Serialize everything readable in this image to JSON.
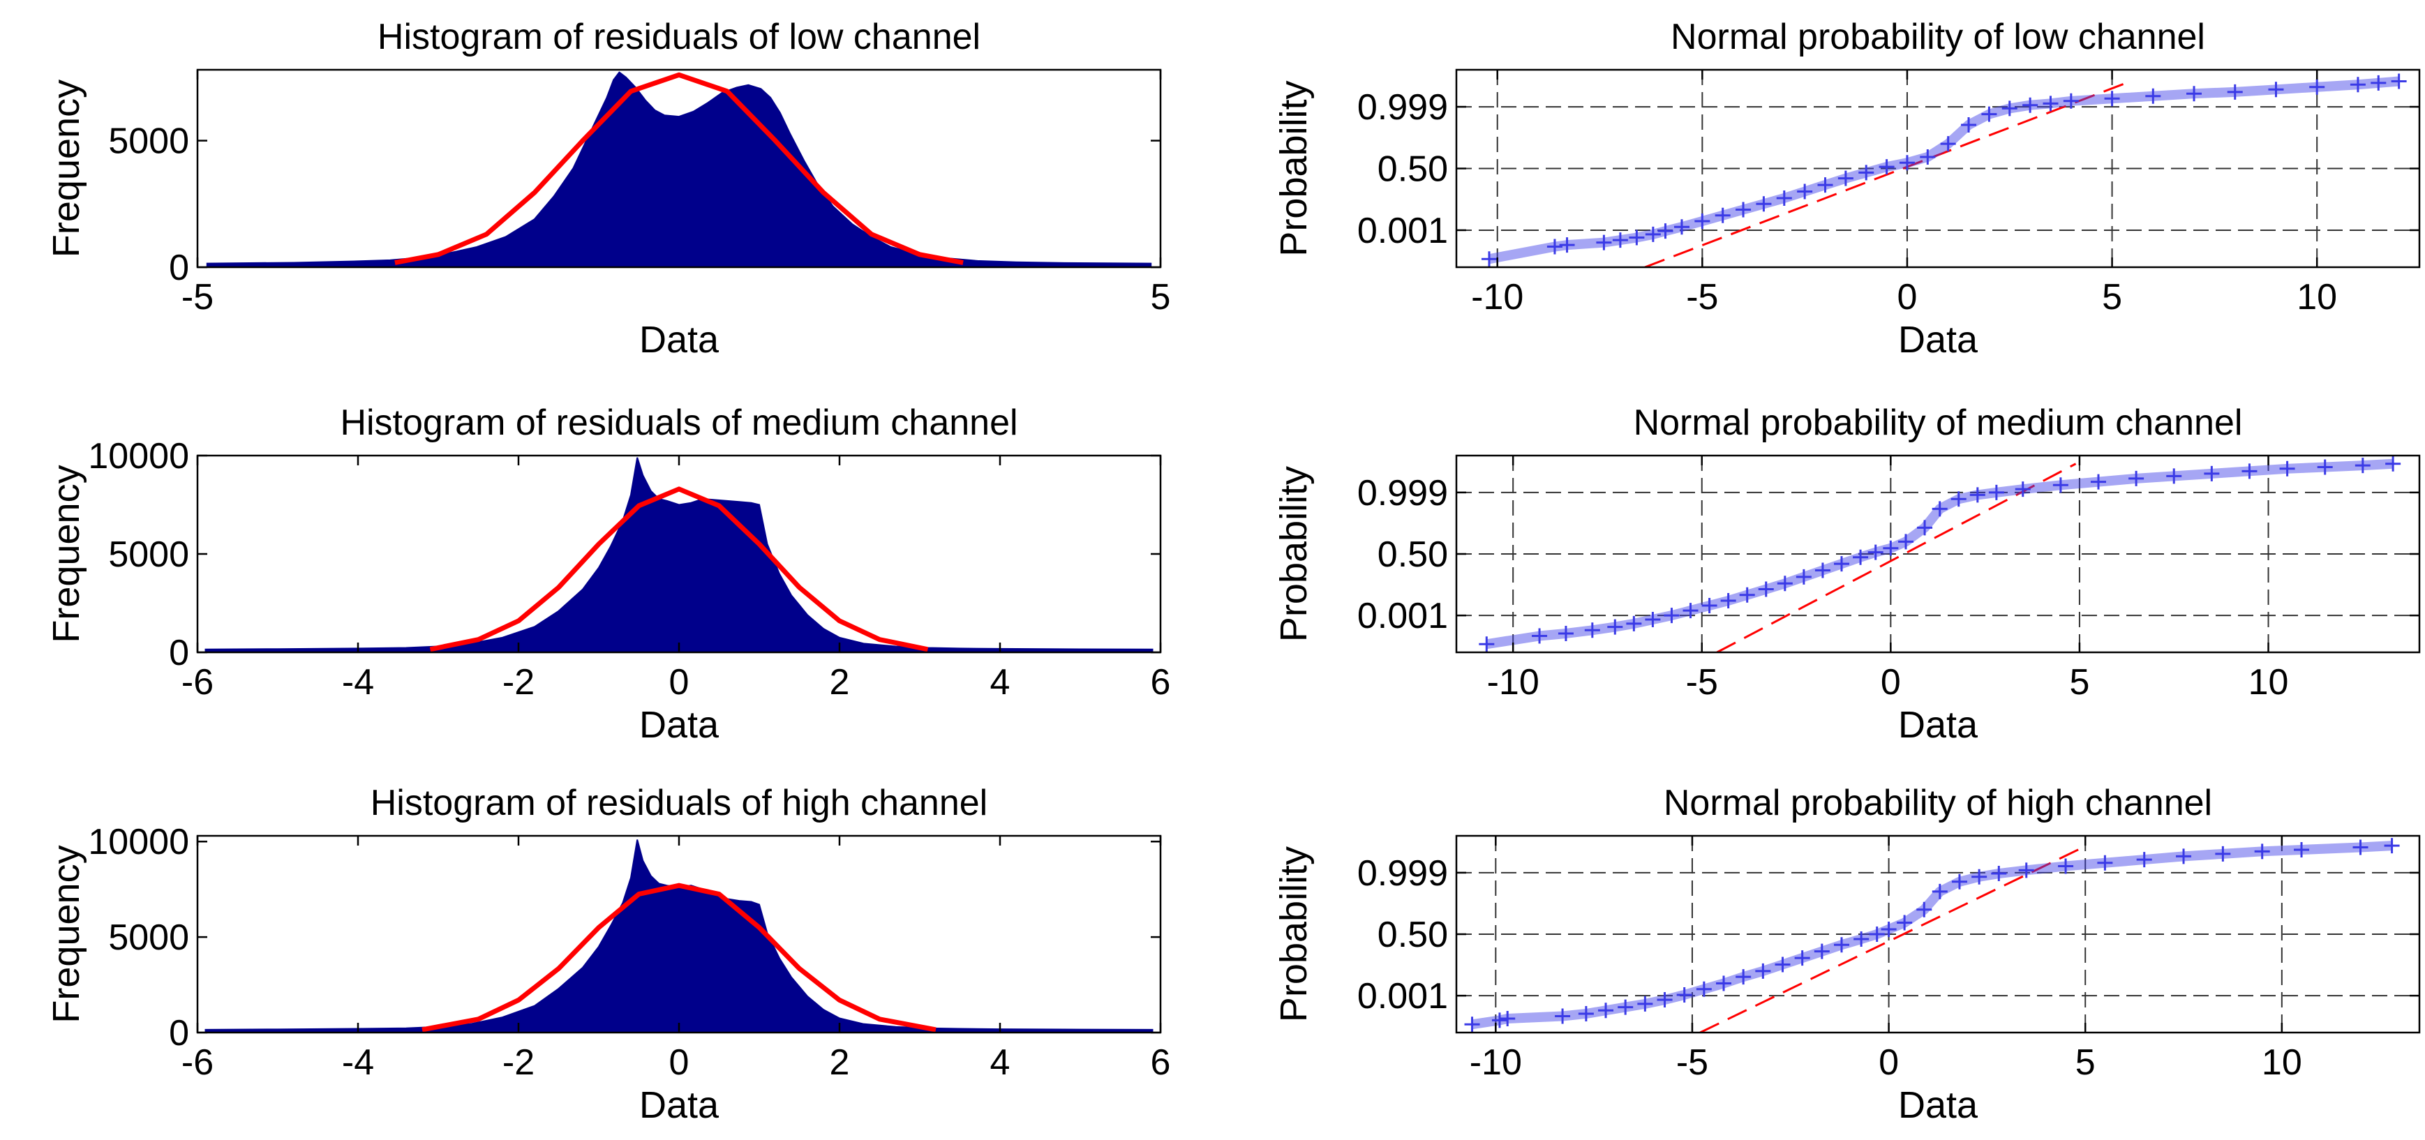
{
  "colors": {
    "bars": "#00008B",
    "fit": "#FF0000",
    "markers": "#3A3AE6",
    "grid": "#333333",
    "reference": "#FF0000"
  },
  "chart_data": [
    {
      "type": "bar",
      "title": "Histogram of residuals of low channel",
      "xlabel": "Data",
      "ylabel": "Frequency",
      "xlim": [
        -5,
        5
      ],
      "ylim": [
        0,
        7800
      ],
      "xticks": [
        -5,
        5
      ],
      "xtick_labels": [
        "-5",
        "5"
      ],
      "yticks": [
        0,
        5000
      ],
      "ytick_labels": [
        "0",
        "5000"
      ],
      "grid": false,
      "histogram": {
        "x": [
          -4.9,
          -4.0,
          -3.4,
          -3.0,
          -2.7,
          -2.4,
          -2.1,
          -1.8,
          -1.5,
          -1.3,
          -1.1,
          -0.95,
          -0.85,
          -0.75,
          -0.68,
          -0.62,
          -0.55,
          -0.45,
          -0.35,
          -0.25,
          -0.15,
          0.0,
          0.15,
          0.3,
          0.45,
          0.6,
          0.72,
          0.85,
          0.95,
          1.05,
          1.15,
          1.3,
          1.45,
          1.6,
          1.8,
          2.0,
          2.2,
          2.5,
          2.8,
          3.1,
          3.5,
          4.0,
          4.9
        ],
        "y": [
          150,
          180,
          230,
          280,
          380,
          550,
          800,
          1200,
          1900,
          2800,
          3900,
          5100,
          5900,
          6700,
          7400,
          7700,
          7500,
          7100,
          6600,
          6200,
          6000,
          5950,
          6150,
          6500,
          6900,
          7100,
          7200,
          7050,
          6700,
          6100,
          5300,
          4200,
          3200,
          2400,
          1700,
          1200,
          800,
          500,
          350,
          250,
          200,
          170,
          150
        ]
      },
      "fit": {
        "name": "",
        "x": [
          -2.95,
          -2.5,
          -2.0,
          -1.5,
          -1.0,
          -0.5,
          0.0,
          0.5,
          1.0,
          1.5,
          2.0,
          2.5,
          2.95
        ],
        "y": [
          180,
          500,
          1300,
          2950,
          5000,
          6950,
          7600,
          6950,
          5000,
          2950,
          1300,
          500,
          180
        ]
      }
    },
    {
      "type": "scatter",
      "title": "Normal probability of low channel",
      "xlabel": "Data",
      "ylabel": "Probability",
      "xlim": [
        -11,
        12.5
      ],
      "ylim": [
        -1.2,
        1.2
      ],
      "xticks": [
        -10,
        -5,
        0,
        5,
        10
      ],
      "xtick_labels": [
        "-10",
        "-5",
        "0",
        "5",
        "10"
      ],
      "yticks": [
        -0.75,
        0.0,
        0.75
      ],
      "ytick_labels": [
        "0.001",
        "0.50",
        "0.999"
      ],
      "grid": true,
      "points": {
        "x": [
          -10.2,
          -8.6,
          -8.3,
          -7.4,
          -7.0,
          -6.6,
          -6.2,
          -5.9,
          -5.5,
          -5.0,
          -4.5,
          -4.0,
          -3.5,
          -3.0,
          -2.5,
          -2.0,
          -1.5,
          -1.0,
          -0.5,
          0.0,
          0.5,
          1.0,
          1.5,
          2.0,
          2.5,
          3.0,
          3.5,
          4.0,
          5.0,
          6.0,
          7.0,
          8.0,
          9.0,
          10.0,
          11.0,
          11.5,
          12.0
        ],
        "y": [
          -1.1,
          -0.95,
          -0.93,
          -0.9,
          -0.87,
          -0.84,
          -0.8,
          -0.76,
          -0.71,
          -0.64,
          -0.57,
          -0.5,
          -0.43,
          -0.36,
          -0.28,
          -0.2,
          -0.12,
          -0.05,
          0.02,
          0.07,
          0.14,
          0.3,
          0.53,
          0.66,
          0.73,
          0.77,
          0.79,
          0.82,
          0.85,
          0.88,
          0.91,
          0.93,
          0.96,
          0.99,
          1.02,
          1.04,
          1.06
        ]
      },
      "reference_line": {
        "x": [
          -6.4,
          5.4
        ],
        "y": [
          -1.2,
          1.05
        ]
      }
    },
    {
      "type": "bar",
      "title": "Histogram of residuals of medium channel",
      "xlabel": "Data",
      "ylabel": "Frequency",
      "xlim": [
        -6,
        6
      ],
      "ylim": [
        0,
        10000
      ],
      "xticks": [
        -6,
        -4,
        -2,
        0,
        2,
        4,
        6
      ],
      "xtick_labels": [
        "-6",
        "-4",
        "-2",
        "0",
        "2",
        "4",
        "6"
      ],
      "yticks": [
        0,
        5000,
        10000
      ],
      "ytick_labels": [
        "0",
        "5000",
        "10000"
      ],
      "grid": false,
      "histogram": {
        "x": [
          -5.9,
          -5.0,
          -4.0,
          -3.4,
          -3.0,
          -2.6,
          -2.2,
          -1.8,
          -1.5,
          -1.2,
          -1.0,
          -0.85,
          -0.7,
          -0.6,
          -0.52,
          -0.45,
          -0.35,
          -0.25,
          -0.15,
          0.0,
          0.15,
          0.3,
          0.45,
          0.6,
          0.75,
          0.9,
          1.0,
          1.1,
          1.25,
          1.4,
          1.6,
          1.8,
          2.0,
          2.3,
          2.7,
          3.1,
          3.5,
          4.0,
          5.0,
          5.9
        ],
        "y": [
          150,
          170,
          200,
          230,
          300,
          450,
          750,
          1300,
          2100,
          3200,
          4300,
          5400,
          6700,
          8000,
          9900,
          9000,
          8200,
          7800,
          7700,
          7500,
          7600,
          7800,
          7750,
          7700,
          7650,
          7600,
          7500,
          5500,
          4000,
          2900,
          1900,
          1200,
          750,
          450,
          300,
          230,
          200,
          180,
          160,
          150
        ]
      },
      "fit": {
        "name": "",
        "x": [
          -3.1,
          -2.5,
          -2.0,
          -1.5,
          -1.0,
          -0.5,
          0.0,
          0.5,
          1.0,
          1.5,
          2.0,
          2.5,
          3.1
        ],
        "y": [
          150,
          650,
          1600,
          3300,
          5500,
          7450,
          8300,
          7450,
          5500,
          3300,
          1600,
          650,
          150
        ]
      }
    },
    {
      "type": "scatter",
      "title": "Normal probability of medium channel",
      "xlabel": "Data",
      "ylabel": "Probability",
      "xlim": [
        -11.5,
        14
      ],
      "ylim": [
        -1.2,
        1.2
      ],
      "xticks": [
        -10,
        -5,
        0,
        5,
        10
      ],
      "xtick_labels": [
        "-10",
        "-5",
        "0",
        "5",
        "10"
      ],
      "yticks": [
        -0.75,
        0.0,
        0.75
      ],
      "ytick_labels": [
        "0.001",
        "0.50",
        "0.999"
      ],
      "grid": true,
      "points": {
        "x": [
          -10.7,
          -9.3,
          -8.6,
          -7.9,
          -7.3,
          -6.8,
          -6.3,
          -5.8,
          -5.3,
          -4.8,
          -4.3,
          -3.8,
          -3.3,
          -2.8,
          -2.3,
          -1.8,
          -1.3,
          -0.8,
          -0.4,
          0.0,
          0.4,
          0.9,
          1.3,
          1.8,
          2.3,
          2.8,
          3.5,
          4.5,
          5.5,
          6.5,
          7.5,
          8.5,
          9.5,
          10.5,
          11.5,
          12.5,
          13.3
        ],
        "y": [
          -1.1,
          -1.0,
          -0.97,
          -0.93,
          -0.89,
          -0.85,
          -0.8,
          -0.75,
          -0.69,
          -0.63,
          -0.57,
          -0.5,
          -0.43,
          -0.36,
          -0.28,
          -0.2,
          -0.12,
          -0.04,
          0.02,
          0.07,
          0.15,
          0.32,
          0.55,
          0.67,
          0.72,
          0.75,
          0.79,
          0.84,
          0.88,
          0.92,
          0.95,
          0.98,
          1.01,
          1.04,
          1.06,
          1.08,
          1.1
        ]
      },
      "reference_line": {
        "x": [
          -4.6,
          4.9
        ],
        "y": [
          -1.2,
          1.1
        ]
      }
    },
    {
      "type": "bar",
      "title": "Histogram of residuals of high channel",
      "xlabel": "Data",
      "ylabel": "Frequency",
      "xlim": [
        -6,
        6
      ],
      "ylim": [
        0,
        10300
      ],
      "xticks": [
        -6,
        -4,
        -2,
        0,
        2,
        4,
        6
      ],
      "xtick_labels": [
        "-6",
        "-4",
        "-2",
        "0",
        "2",
        "4",
        "6"
      ],
      "yticks": [
        0,
        5000,
        10000
      ],
      "ytick_labels": [
        "0",
        "5000",
        "10000"
      ],
      "grid": false,
      "histogram": {
        "x": [
          -5.9,
          -5.0,
          -4.0,
          -3.4,
          -3.0,
          -2.6,
          -2.2,
          -1.8,
          -1.5,
          -1.2,
          -1.0,
          -0.85,
          -0.7,
          -0.6,
          -0.52,
          -0.45,
          -0.35,
          -0.25,
          -0.15,
          0.0,
          0.15,
          0.3,
          0.45,
          0.6,
          0.75,
          0.9,
          1.0,
          1.1,
          1.25,
          1.4,
          1.6,
          1.8,
          2.0,
          2.3,
          2.7,
          3.1,
          3.5,
          4.0,
          5.0,
          5.9
        ],
        "y": [
          150,
          170,
          200,
          230,
          300,
          450,
          800,
          1400,
          2300,
          3400,
          4500,
          5600,
          6800,
          8100,
          10100,
          9000,
          8200,
          7800,
          7700,
          7600,
          7700,
          7500,
          7200,
          7000,
          6900,
          6850,
          6700,
          5200,
          3900,
          2900,
          1900,
          1200,
          750,
          450,
          300,
          230,
          200,
          180,
          160,
          150
        ]
      },
      "fit": {
        "name": "",
        "x": [
          -3.2,
          -2.5,
          -2.0,
          -1.5,
          -1.0,
          -0.5,
          0.0,
          0.5,
          1.0,
          1.5,
          2.0,
          2.5,
          3.2
        ],
        "y": [
          150,
          700,
          1700,
          3350,
          5500,
          7250,
          7700,
          7250,
          5500,
          3350,
          1700,
          700,
          150
        ]
      }
    },
    {
      "type": "scatter",
      "title": "Normal probability of high channel",
      "xlabel": "Data",
      "ylabel": "Probability",
      "xlim": [
        -11,
        13.5
      ],
      "ylim": [
        -1.2,
        1.2
      ],
      "xticks": [
        -10,
        -5,
        0,
        5,
        10
      ],
      "xtick_labels": [
        "-10",
        "-5",
        "0",
        "5",
        "10"
      ],
      "yticks": [
        -0.75,
        0.0,
        0.75
      ],
      "ytick_labels": [
        "0.001",
        "0.50",
        "0.999"
      ],
      "grid": true,
      "points": {
        "x": [
          -10.6,
          -9.9,
          -9.7,
          -8.3,
          -7.7,
          -7.2,
          -6.7,
          -6.2,
          -5.7,
          -5.2,
          -4.7,
          -4.2,
          -3.7,
          -3.2,
          -2.7,
          -2.2,
          -1.7,
          -1.2,
          -0.7,
          -0.3,
          0.0,
          0.4,
          0.9,
          1.3,
          1.8,
          2.3,
          2.8,
          3.5,
          4.5,
          5.5,
          6.5,
          7.5,
          8.5,
          9.5,
          10.5,
          12.0,
          12.8
        ],
        "y": [
          -1.1,
          -1.05,
          -1.03,
          -1.0,
          -0.97,
          -0.93,
          -0.89,
          -0.85,
          -0.8,
          -0.74,
          -0.67,
          -0.6,
          -0.52,
          -0.45,
          -0.37,
          -0.29,
          -0.21,
          -0.13,
          -0.06,
          0.0,
          0.06,
          0.14,
          0.3,
          0.52,
          0.64,
          0.7,
          0.74,
          0.78,
          0.83,
          0.87,
          0.91,
          0.95,
          0.98,
          1.01,
          1.03,
          1.06,
          1.08
        ]
      },
      "reference_line": {
        "x": [
          -4.8,
          4.9
        ],
        "y": [
          -1.2,
          1.05
        ]
      }
    }
  ]
}
